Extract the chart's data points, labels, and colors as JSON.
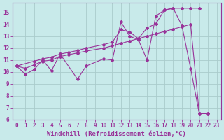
{
  "xlabel": "Windchill (Refroidissement éolien,°C)",
  "bg_color": "#c8eaea",
  "grid_color": "#aacccc",
  "line_color": "#993399",
  "xlim": [
    -0.5,
    23.5
  ],
  "ylim": [
    6,
    15.8
  ],
  "yticks": [
    6,
    7,
    8,
    9,
    10,
    11,
    12,
    13,
    14,
    15
  ],
  "xticks": [
    0,
    1,
    2,
    3,
    4,
    5,
    6,
    7,
    8,
    9,
    10,
    11,
    12,
    13,
    14,
    15,
    16,
    17,
    18,
    19,
    20,
    21,
    22,
    23
  ],
  "line1_x": [
    0,
    1,
    2,
    3,
    4,
    5,
    7,
    8,
    10,
    11,
    12,
    13,
    14,
    15,
    16,
    17,
    18,
    19,
    20,
    21,
    22
  ],
  "line1_y": [
    10.5,
    9.8,
    10.2,
    11.0,
    10.1,
    11.5,
    9.4,
    10.5,
    11.1,
    11.0,
    14.2,
    13.0,
    12.7,
    11.0,
    14.7,
    15.2,
    15.35,
    13.9,
    10.3,
    6.5,
    6.5
  ],
  "line2_x": [
    0,
    2,
    3,
    4,
    5,
    6,
    7,
    8,
    10,
    11,
    12,
    13,
    14,
    15,
    16,
    17,
    18,
    19,
    20,
    21
  ],
  "line2_y": [
    10.5,
    10.9,
    11.1,
    11.25,
    11.5,
    11.65,
    11.8,
    12.0,
    12.3,
    12.5,
    13.55,
    13.35,
    12.8,
    13.7,
    14.05,
    15.2,
    15.35,
    15.35,
    15.35,
    15.35
  ],
  "line3_x": [
    0,
    1,
    2,
    3,
    4,
    5,
    6,
    7,
    8,
    10,
    11,
    12,
    13,
    14,
    15,
    16,
    17,
    18,
    19,
    20,
    21,
    22
  ],
  "line3_y": [
    10.5,
    10.3,
    10.6,
    10.9,
    11.0,
    11.3,
    11.45,
    11.6,
    11.75,
    12.0,
    12.2,
    12.4,
    12.6,
    12.8,
    13.0,
    13.2,
    13.4,
    13.6,
    13.8,
    14.0,
    6.5,
    6.5
  ],
  "tick_fontsize": 5.5,
  "xlabel_fontsize": 6.5
}
